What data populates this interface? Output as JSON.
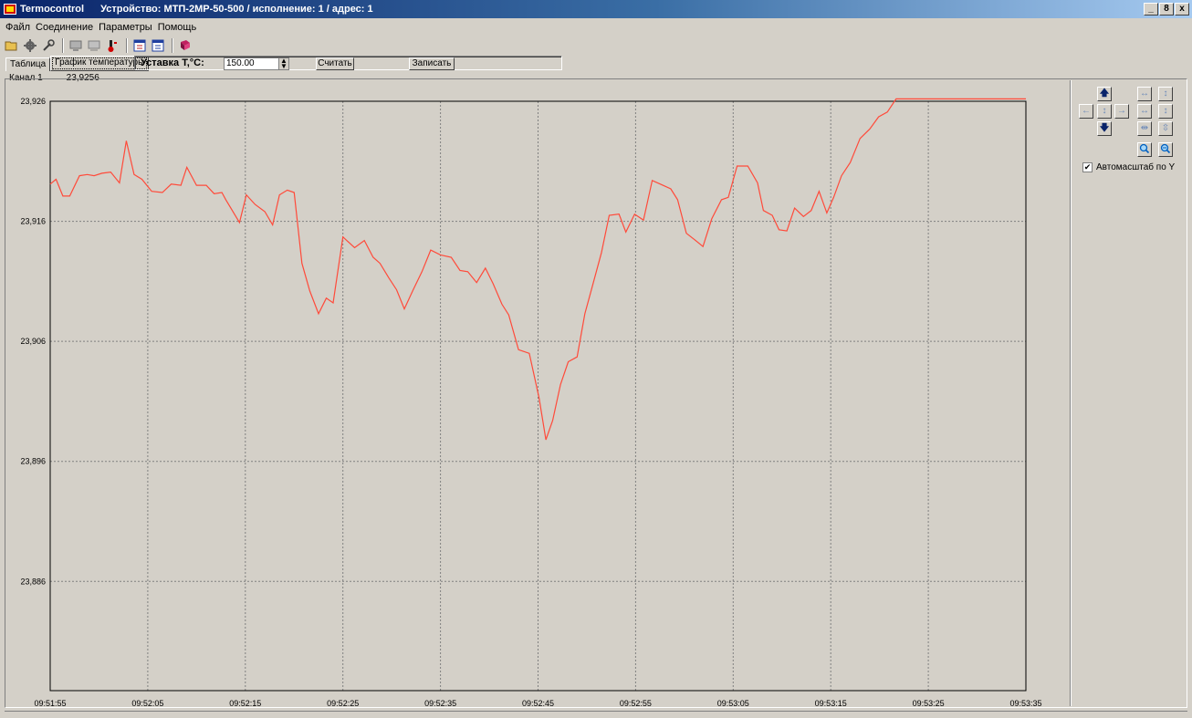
{
  "window": {
    "app_name": "Termocontrol",
    "device_title": "Устройство: МТП-2МР-50-500 / исполнение: 1 / адрес: 1",
    "buttons": [
      "_",
      "8",
      "x"
    ]
  },
  "menu": [
    "Файл",
    "Соединение",
    "Параметры",
    "Помощь"
  ],
  "toolbar": {
    "icons": [
      "open-icon",
      "device-icon",
      "tool-icon",
      "connect-icon",
      "disconnect-icon",
      "thermometer-icon",
      "read-icon",
      "write-icon",
      "book-icon"
    ]
  },
  "tabs": [
    {
      "label": "Таблица",
      "active": false
    },
    {
      "label": "График температуры",
      "active": true
    }
  ],
  "params": {
    "setpoint_label": "Уставка T,°С:",
    "setpoint_value": "150.00",
    "read_label": "Считать",
    "write_label": "Записать"
  },
  "channel": {
    "label": "Канал 1",
    "value": "23,9256"
  },
  "chart_data": {
    "type": "line",
    "title": "",
    "xlabel": "",
    "ylabel": "",
    "y_tick_labels": [
      "23,926",
      "23,916",
      "23,906",
      "23,896",
      "23,886"
    ],
    "y_ticks": [
      23.926,
      23.916,
      23.906,
      23.896,
      23.886
    ],
    "ylim": [
      23.8769,
      23.926
    ],
    "x_tick_labels": [
      "09:51:55",
      "09:52:05",
      "09:52:15",
      "09:52:25",
      "09:52:35",
      "09:52:45",
      "09:52:55",
      "09:53:05",
      "09:53:15",
      "09:53:25",
      "09:53:35"
    ],
    "xlim_seconds": [
      0,
      100
    ],
    "grid": true,
    "line_color": "#ff4a3a",
    "series": [
      {
        "x": [
          0,
          0.6,
          1.3,
          2,
          3,
          3.8,
          4.5,
          5.3,
          6.2,
          7.1,
          7.8,
          8.6,
          9.4,
          10.4,
          11.5,
          12.4,
          13.4,
          14,
          15,
          16,
          16.8,
          17.6,
          18,
          19.4,
          20.1,
          21,
          22,
          22.8,
          23.5,
          24.3,
          25,
          25.8,
          26.6,
          27.5,
          28.3,
          29,
          30,
          31.2,
          32.2,
          33.1,
          33.8,
          34.7,
          35.5,
          36.3,
          37.2,
          38.1,
          39,
          40,
          41.1,
          42,
          42.8,
          43.7,
          44.6,
          45.4,
          46.3,
          47,
          48,
          49.1,
          50.1,
          50.8,
          51.5,
          52.3,
          53.1,
          54,
          54.8,
          55.6,
          56.5,
          57.3,
          58.3,
          59,
          59.9,
          60.8,
          61.7,
          62.8,
          63.6,
          64.3,
          65.2,
          66,
          66.9,
          67.8,
          68.8,
          69.5,
          70.4,
          71.5,
          72.5,
          73.1,
          74,
          74.7,
          75.5,
          76.3,
          77.2,
          78,
          78.8,
          79.6,
          80.3,
          81.1,
          82,
          83,
          84,
          84.9,
          85.8,
          86.7,
          87.4,
          88.5,
          89.4,
          90.2,
          91,
          91.9,
          92.9,
          93.7,
          94.6,
          95.3,
          96,
          96.8,
          97.6,
          98.6,
          99.4,
          100
        ],
        "values": [
          23.9191,
          23.9195,
          23.9181,
          23.9181,
          23.9198,
          23.9199,
          23.9198,
          23.92,
          23.9201,
          23.9192,
          23.9227,
          23.9199,
          23.9195,
          23.9185,
          23.9184,
          23.9191,
          23.919,
          23.9205,
          23.919,
          23.919,
          23.9183,
          23.9184,
          23.9178,
          23.9159,
          23.9182,
          23.9174,
          23.9168,
          23.9157,
          23.9182,
          23.9186,
          23.9184,
          23.9125,
          23.9102,
          23.9083,
          23.9096,
          23.9092,
          23.9147,
          23.9138,
          23.9144,
          23.913,
          23.9125,
          23.9113,
          23.9103,
          23.9087,
          23.9103,
          23.9118,
          23.9136,
          23.9132,
          23.913,
          23.9119,
          23.9118,
          23.9109,
          23.9121,
          23.9108,
          23.9091,
          23.9082,
          23.9053,
          23.905,
          23.9013,
          23.8978,
          23.8994,
          23.9024,
          23.9043,
          23.9047,
          23.9083,
          23.9107,
          23.9134,
          23.9165,
          23.9166,
          23.9151,
          23.9166,
          23.9161,
          23.9194,
          23.919,
          23.9187,
          23.9178,
          23.915,
          23.9145,
          23.9139,
          23.9162,
          23.9178,
          23.918,
          23.9206,
          23.9206,
          23.9192,
          23.9169,
          23.9165,
          23.9153,
          23.9152,
          23.9171,
          23.9164,
          23.9169,
          23.9185,
          23.9167,
          23.918,
          23.9198,
          23.9209,
          23.9229,
          23.9237,
          23.9247,
          23.9251,
          23.9262,
          23.9262,
          23.9262,
          23.9262,
          23.9262,
          23.9262,
          23.9262,
          23.9262,
          23.9262,
          23.9262,
          23.9262,
          23.9262,
          23.9262,
          23.9262,
          23.9262,
          23.9262,
          23.9262
        ]
      }
    ]
  },
  "right_panel": {
    "autoscale_label": "Автомасштаб по Y",
    "autoscale_checked": true
  }
}
